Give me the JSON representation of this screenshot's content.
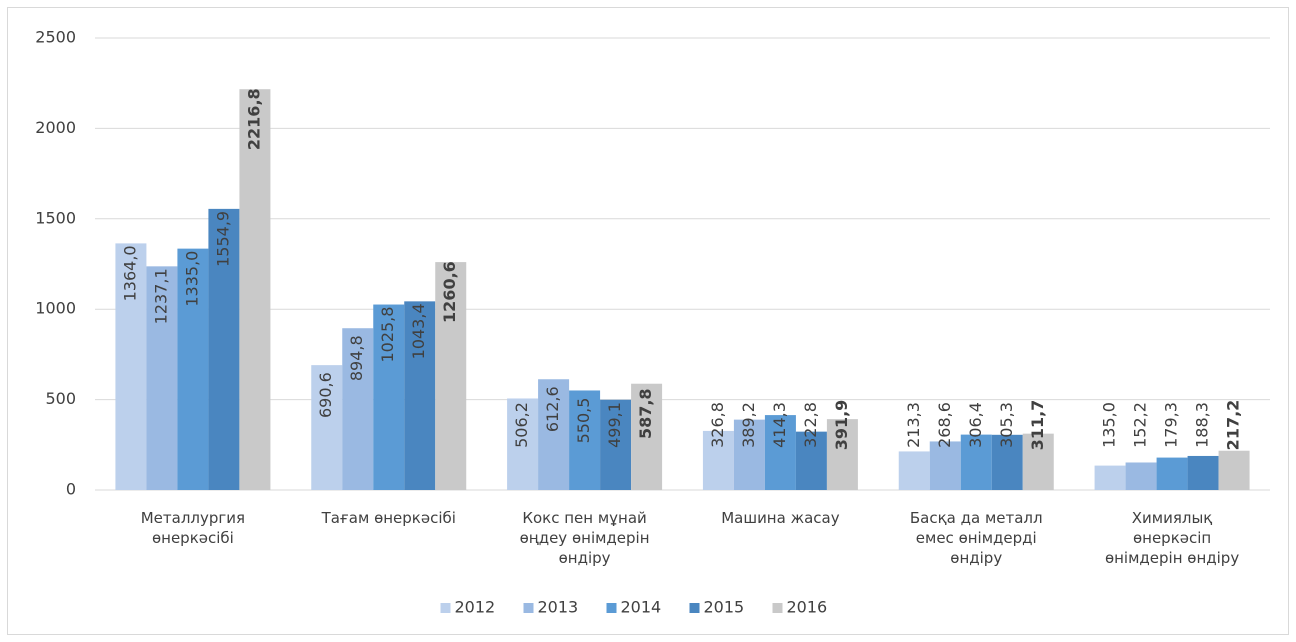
{
  "chart_data": {
    "type": "bar",
    "categories": [
      "Металлургия өнеркәсібі",
      "Тағам өнеркәсібі",
      "Кокс пен мұнай өңдеу өнімдерін өндіру",
      "Машина жасау",
      "Басқа да металл емес өнімдерді өндіру",
      "Химиялық өнеркәсіп өнімдерін өндіру"
    ],
    "series": [
      {
        "name": "2012",
        "color": "#bcd0ec",
        "values": [
          1364.0,
          690.6,
          506.2,
          326.8,
          213.3,
          135.0
        ],
        "value_labels": [
          "1364,0",
          "690,6",
          "506,2",
          "326,8",
          "213,3",
          "135,0"
        ]
      },
      {
        "name": "2013",
        "color": "#9ab9e2",
        "values": [
          1237.1,
          894.8,
          612.6,
          389.2,
          268.6,
          152.2
        ],
        "value_labels": [
          "1237,1",
          "894,8",
          "612,6",
          "389,2",
          "268,6",
          "152,2"
        ]
      },
      {
        "name": "2014",
        "color": "#5b9bd5",
        "values": [
          1335.0,
          1025.8,
          550.5,
          414.3,
          306.4,
          179.3
        ],
        "value_labels": [
          "1335,0",
          "1025,8",
          "550,5",
          "414,3",
          "306,4",
          "179,3"
        ]
      },
      {
        "name": "2015",
        "color": "#4a86c0",
        "values": [
          1554.9,
          1043.4,
          499.1,
          322.8,
          305.3,
          188.3
        ],
        "value_labels": [
          "1554,9",
          "1043,4",
          "499,1",
          "322,8",
          "305,3",
          "188,3"
        ]
      },
      {
        "name": "2016",
        "color": "#c9c9c9",
        "values": [
          2216.8,
          1260.6,
          587.8,
          391.9,
          311.7,
          217.2
        ],
        "value_labels": [
          "2216,8",
          "1260,6",
          "587,8",
          "391,9",
          "311,7",
          "217,2"
        ]
      }
    ],
    "ylim": [
      0,
      2500
    ],
    "yticks": [
      0,
      500,
      1000,
      1500,
      2000,
      2500
    ],
    "grid": true,
    "legend": "bottom"
  }
}
